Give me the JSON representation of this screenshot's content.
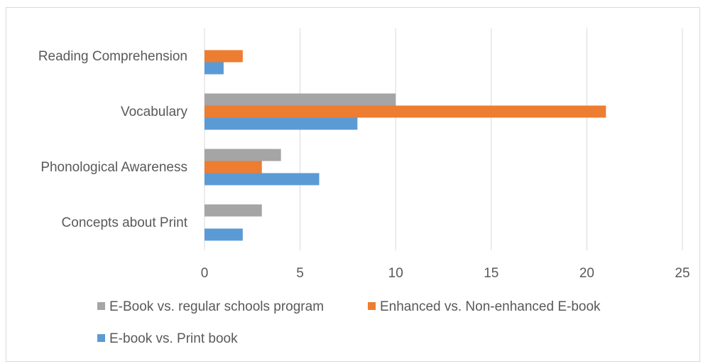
{
  "chart_data": {
    "type": "bar",
    "orientation": "horizontal",
    "categories": [
      "Reading Comprehension",
      "Vocabulary",
      "Phonological Awareness",
      "Concepts about Print"
    ],
    "series": [
      {
        "name": "E-Book vs. regular schools program",
        "color": "#a5a5a5",
        "values": [
          0,
          10,
          4,
          3
        ]
      },
      {
        "name": "Enhanced vs. Non-enhanced E-book",
        "color": "#ed7d31",
        "values": [
          2,
          21,
          3,
          0
        ]
      },
      {
        "name": "E-book vs. Print book",
        "color": "#5b9bd5",
        "values": [
          1,
          8,
          6,
          2
        ]
      }
    ],
    "xlim": [
      0,
      25
    ],
    "xticks": [
      0,
      5,
      10,
      15,
      20,
      25
    ],
    "grid": "vertical",
    "legend_position": "bottom"
  }
}
